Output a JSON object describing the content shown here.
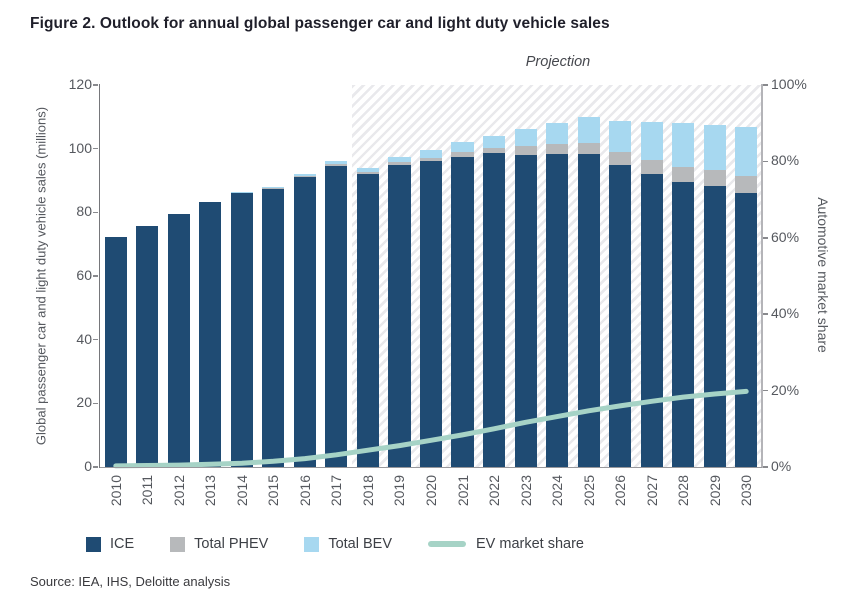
{
  "figure": {
    "title": "Figure 2. Outlook for annual global passenger car and light duty vehicle sales",
    "source": "Source: IEA, IHS, Deloitte analysis"
  },
  "colors": {
    "ice": "#1f4b73",
    "phev": "#b7b9bb",
    "bev": "#a7d8f0",
    "ev_line": "#a6d3c6",
    "hatch_stripe": "#e9e9ec",
    "axis_text": "#55585e",
    "title_text": "#1f1f2a"
  },
  "chart_data": {
    "type": "bar",
    "subtype": "stacked-bars-with-line-overlay",
    "title": "Outlook for annual global passenger car and light duty vehicle sales",
    "categories": [
      "2010",
      "2011",
      "2012",
      "2013",
      "2014",
      "2015",
      "2016",
      "2017",
      "2018",
      "2019",
      "2020",
      "2021",
      "2022",
      "2023",
      "2024",
      "2025",
      "2026",
      "2027",
      "2028",
      "2029",
      "2030"
    ],
    "series": [
      {
        "name": "ICE",
        "type": "bar",
        "stack": "vehicles",
        "color": "#1f4b73",
        "values": [
          72.3,
          75.7,
          79.5,
          83.4,
          86.2,
          87.4,
          91.2,
          94.6,
          92.1,
          94.9,
          96.1,
          97.5,
          98.5,
          98.1,
          98.4,
          98.4,
          95.0,
          92.0,
          89.4,
          88.2,
          86.0
        ]
      },
      {
        "name": "Total PHEV",
        "type": "bar",
        "stack": "vehicles",
        "color": "#b7b9bb",
        "values": [
          0,
          0,
          0,
          0,
          0.1,
          0.2,
          0.3,
          0.5,
          0.6,
          0.9,
          1.1,
          1.4,
          1.7,
          2.7,
          3.1,
          3.4,
          4.1,
          4.4,
          4.7,
          5.0,
          5.4
        ]
      },
      {
        "name": "Total BEV",
        "type": "bar",
        "stack": "vehicles",
        "color": "#a7d8f0",
        "values": [
          0,
          0,
          0,
          0,
          0.2,
          0.4,
          0.5,
          1.1,
          1.3,
          1.7,
          2.3,
          3.1,
          3.8,
          5.5,
          6.5,
          8.2,
          9.6,
          12.1,
          13.9,
          14.3,
          15.4
        ]
      },
      {
        "name": "EV market share",
        "type": "line",
        "axis": "right",
        "unit": "%",
        "color": "#a6d3c6",
        "values": [
          0.3,
          0.4,
          0.5,
          0.7,
          1.0,
          1.5,
          2.2,
          3.2,
          4.4,
          5.6,
          7.0,
          8.4,
          10.0,
          11.7,
          13.2,
          14.7,
          16.0,
          17.2,
          18.3,
          19.1,
          19.8
        ]
      }
    ],
    "left_axis": {
      "label": "Global passenger car and light duty vehicle sales (millions)",
      "min": 0,
      "max": 120,
      "tick_values": [
        0,
        20,
        40,
        60,
        80,
        100,
        120
      ],
      "tick_labels": [
        "0",
        "20",
        "40",
        "60",
        "80",
        "100",
        "120"
      ]
    },
    "right_axis": {
      "label": "Automotive market share",
      "min": 0,
      "max": 100,
      "tick_values": [
        0,
        20,
        40,
        60,
        80,
        100
      ],
      "tick_labels": [
        "0%",
        "20%",
        "40%",
        "60%",
        "80%",
        "100%"
      ]
    },
    "projection": {
      "label": "Projection",
      "start_category": "2018"
    },
    "legend": {
      "position": "bottom",
      "items": [
        {
          "label": "ICE",
          "swatch": "square",
          "color": "#1f4b73"
        },
        {
          "label": "Total PHEV",
          "swatch": "square",
          "color": "#b7b9bb"
        },
        {
          "label": "Total BEV",
          "swatch": "square",
          "color": "#a7d8f0"
        },
        {
          "label": "EV market share",
          "swatch": "line",
          "color": "#a6d3c6"
        }
      ]
    },
    "grid": false
  }
}
